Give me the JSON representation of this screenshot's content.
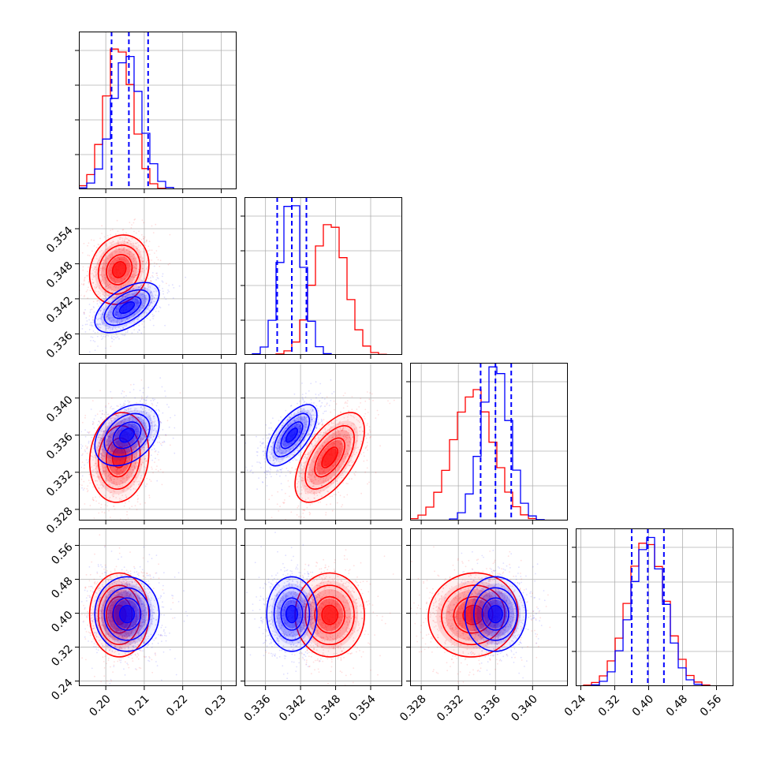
{
  "chart_data": {
    "type": "corner",
    "grid": true,
    "colors": {
      "series_a": "#0000ff",
      "series_b": "#ff0000"
    },
    "series": [
      {
        "color": "#0000ff",
        "means": [
          0.2055,
          0.3405,
          0.336,
          0.398
        ],
        "sigmas": [
          0.0038,
          0.00195,
          0.0015,
          0.04
        ],
        "quantile_lines": [
          [
            0.2015,
            0.206,
            0.211
          ],
          [
            0.338,
            0.3405,
            0.343
          ],
          [
            0.3344,
            0.336,
            0.3377
          ],
          [
            0.36,
            0.398,
            0.436
          ]
        ],
        "hist_peak_fraction": [
          0.85,
          0.98,
          0.98,
          0.92
        ]
      },
      {
        "color": "#ff0000",
        "means": [
          0.2035,
          0.347,
          0.3336,
          0.396
        ],
        "sigmas": [
          0.0035,
          0.0027,
          0.0022,
          0.045
        ],
        "hist_peak_fraction": [
          0.92,
          0.86,
          0.82,
          0.9
        ]
      }
    ],
    "correlations": {
      "series_a": {
        "1-0": 0.55,
        "2-0": 0.35,
        "2-1": 0.65,
        "3-0": 0.0,
        "3-1": 0.0,
        "3-2": 0.0
      },
      "series_b": {
        "1-0": 0.15,
        "2-0": 0.1,
        "2-1": 0.6,
        "3-0": 0.0,
        "3-1": 0.0,
        "3-2": 0.05
      }
    },
    "ranges": [
      [
        0.193,
        0.234
      ],
      [
        0.3324,
        0.3594
      ],
      [
        0.3268,
        0.3438
      ],
      [
        0.228,
        0.6
      ]
    ],
    "ticks": [
      [
        0.2,
        0.21,
        0.22,
        0.23
      ],
      [
        0.336,
        0.342,
        0.348,
        0.354
      ],
      [
        0.328,
        0.332,
        0.336,
        0.34
      ],
      [
        0.24,
        0.32,
        0.4,
        0.48,
        0.56
      ]
    ],
    "tick_labels": [
      [
        "0.20",
        "0.21",
        "0.22",
        "0.23"
      ],
      [
        "0.336",
        "0.342",
        "0.348",
        "0.354"
      ],
      [
        "0.328",
        "0.332",
        "0.336",
        "0.340"
      ],
      [
        "0.24",
        "0.32",
        "0.40",
        "0.48",
        "0.56"
      ]
    ]
  }
}
